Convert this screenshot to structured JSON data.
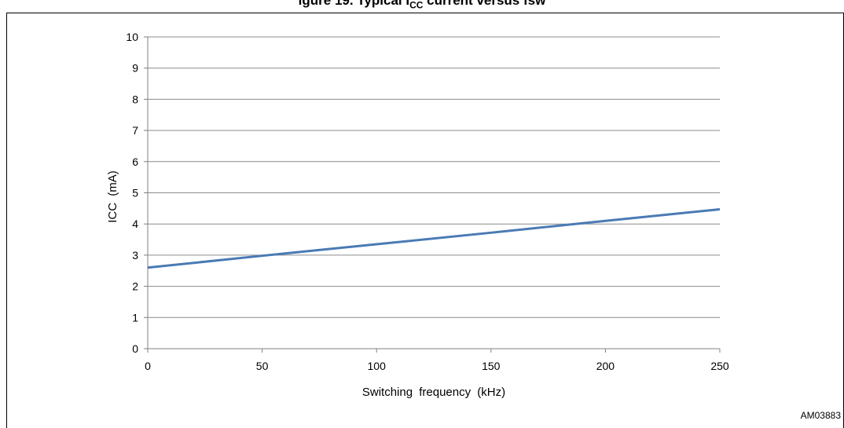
{
  "figure": {
    "title": "igure 19. Typical I",
    "title_sub": "CC",
    "title_tail": " current versus fsw"
  },
  "figure_id": "AM03883",
  "chart_data": {
    "type": "line",
    "xlabel": "Switching frequency (kHz)",
    "ylabel": "ICC (mA)",
    "xlim": [
      0,
      250
    ],
    "ylim": [
      0,
      10
    ],
    "xticks": [
      0,
      50,
      100,
      150,
      200,
      250
    ],
    "yticks": [
      0,
      1,
      2,
      3,
      4,
      5,
      6,
      7,
      8,
      9,
      10
    ],
    "grid": "horizontal",
    "series": [
      {
        "color": "#4a7ab5",
        "x": [
          0,
          50,
          100,
          150,
          200,
          250
        ],
        "y": [
          2.6,
          2.98,
          3.35,
          3.72,
          4.1,
          4.47
        ]
      }
    ]
  }
}
